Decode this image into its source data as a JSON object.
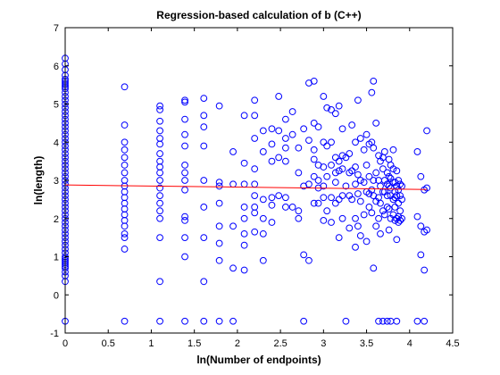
{
  "chart_data": {
    "type": "scatter",
    "title": "Regression-based calculation of b (C++)",
    "xlabel": "ln(Number of endpoints)",
    "ylabel": "ln(length)",
    "xlim": [
      0,
      4.5
    ],
    "ylim": [
      -1,
      7
    ],
    "xticks": [
      "0",
      "0.5",
      "1",
      "1.5",
      "2",
      "2.5",
      "3",
      "3.5",
      "4",
      "4.5"
    ],
    "yticks": [
      "-1",
      "0",
      "1",
      "2",
      "3",
      "4",
      "5",
      "6",
      "7"
    ],
    "grid": false,
    "colors": {
      "points": "#0000ff",
      "fit": "#ff0000",
      "axes": "#000000",
      "background": "#ffffff"
    },
    "series": [
      {
        "type": "scatter",
        "marker": "circle-open",
        "x": [
          0,
          0,
          0,
          0,
          0,
          0,
          0,
          0,
          0,
          0,
          0,
          0,
          0,
          0,
          0,
          0,
          0,
          0,
          0,
          0,
          0,
          0,
          0,
          0,
          0,
          0,
          0,
          0,
          0,
          0,
          0,
          0,
          0,
          0,
          0,
          0,
          0,
          0,
          0,
          0,
          0,
          0,
          0,
          0,
          0,
          0,
          0,
          0,
          0,
          0,
          0,
          0,
          0,
          0,
          0,
          0,
          0,
          0,
          0,
          0,
          0,
          0,
          0,
          0,
          0.69,
          0.69,
          0.69,
          0.69,
          0.69,
          0.69,
          0.69,
          0.69,
          0.69,
          0.69,
          0.69,
          0.69,
          0.69,
          0.69,
          0.69,
          0.69,
          0.69,
          0.69,
          0.69,
          0.69,
          1.1,
          1.1,
          1.1,
          1.1,
          1.1,
          1.1,
          1.1,
          1.1,
          1.1,
          1.1,
          1.1,
          1.1,
          1.1,
          1.1,
          1.1,
          1.1,
          1.1,
          1.1,
          1.1,
          1.39,
          1.39,
          1.39,
          1.39,
          1.39,
          1.39,
          1.39,
          1.39,
          1.39,
          1.39,
          1.39,
          1.39,
          1.39,
          1.39,
          1.61,
          1.61,
          1.61,
          1.61,
          1.61,
          1.61,
          1.61,
          1.61,
          1.61,
          1.79,
          1.79,
          1.79,
          1.79,
          1.79,
          1.79,
          1.79,
          1.79,
          1.95,
          1.95,
          1.95,
          1.95,
          1.95,
          2.08,
          2.08,
          2.08,
          2.08,
          2.08,
          2.08,
          2.08,
          2.08,
          2.2,
          2.2,
          2.2,
          2.2,
          2.2,
          2.2,
          2.2,
          2.2,
          2.2,
          2.3,
          2.3,
          2.3,
          2.3,
          2.3,
          2.3,
          2.4,
          2.4,
          2.4,
          2.4,
          2.4,
          2.4,
          2.48,
          2.48,
          2.48,
          2.48,
          2.56,
          2.56,
          2.56,
          2.56,
          2.56,
          2.56,
          2.64,
          2.64,
          2.64,
          2.71,
          2.71,
          2.71,
          2.71,
          2.77,
          2.77,
          2.77,
          2.77,
          2.83,
          2.83,
          2.83,
          2.83,
          2.89,
          2.89,
          2.89,
          2.89,
          2.89,
          2.89,
          2.94,
          2.94,
          2.94,
          2.94,
          2.94,
          3.0,
          3.0,
          3.0,
          3.0,
          3.0,
          3.0,
          3.04,
          3.04,
          3.04,
          3.04,
          3.09,
          3.09,
          3.09,
          3.09,
          3.09,
          3.14,
          3.14,
          3.14,
          3.14,
          3.14,
          3.18,
          3.18,
          3.18,
          3.18,
          3.18,
          3.22,
          3.22,
          3.22,
          3.22,
          3.22,
          3.26,
          3.26,
          3.26,
          3.3,
          3.3,
          3.3,
          3.3,
          3.33,
          3.33,
          3.33,
          3.37,
          3.37,
          3.37,
          3.37,
          3.37,
          3.4,
          3.4,
          3.4,
          3.4,
          3.43,
          3.43,
          3.43,
          3.43,
          3.47,
          3.47,
          3.47,
          3.5,
          3.5,
          3.5,
          3.5,
          3.53,
          3.53,
          3.53,
          3.53,
          3.56,
          3.56,
          3.56,
          3.56,
          3.58,
          3.58,
          3.58,
          3.58,
          3.58,
          3.61,
          3.61,
          3.61,
          3.61,
          3.64,
          3.64,
          3.64,
          3.64,
          3.64,
          3.66,
          3.66,
          3.66,
          3.66,
          3.69,
          3.69,
          3.69,
          3.69,
          3.69,
          3.71,
          3.71,
          3.71,
          3.71,
          3.74,
          3.74,
          3.74,
          3.74,
          3.74,
          3.76,
          3.76,
          3.76,
          3.76,
          3.76,
          3.78,
          3.78,
          3.78,
          3.78,
          3.78,
          3.78,
          3.81,
          3.81,
          3.81,
          3.81,
          3.81,
          3.83,
          3.83,
          3.83,
          3.83,
          3.83,
          3.85,
          3.85,
          3.85,
          3.85,
          3.85,
          3.85,
          3.87,
          3.87,
          3.87,
          3.87,
          3.87,
          3.89,
          3.89,
          3.89,
          3.89,
          3.91,
          3.91,
          3.91,
          4.09,
          4.09,
          4.09,
          4.13,
          4.13,
          4.13,
          4.17,
          4.17,
          4.17,
          4.17,
          4.2,
          4.2,
          4.2
        ],
        "y": [
          6.2,
          6.05,
          5.9,
          5.75,
          5.6,
          5.5,
          5.4,
          5.3,
          5.2,
          5.1,
          5.0,
          4.9,
          4.8,
          4.7,
          4.6,
          4.5,
          4.4,
          4.3,
          4.2,
          4.1,
          4.0,
          3.9,
          3.8,
          3.7,
          3.6,
          3.5,
          3.4,
          3.3,
          3.2,
          3.1,
          3.0,
          2.9,
          2.8,
          2.7,
          2.6,
          2.5,
          2.4,
          2.3,
          2.2,
          2.1,
          2.0,
          1.9,
          1.8,
          1.7,
          1.6,
          1.5,
          1.4,
          1.3,
          1.2,
          1.1,
          1.0,
          0.95,
          0.9,
          0.85,
          0.8,
          0.75,
          0.7,
          0.6,
          0.5,
          0.35,
          5.65,
          5.55,
          5.45,
          -0.69,
          5.45,
          4.45,
          4.0,
          3.8,
          3.6,
          3.4,
          3.2,
          3.0,
          2.85,
          2.7,
          2.55,
          2.4,
          2.25,
          2.1,
          1.95,
          1.8,
          1.6,
          1.5,
          1.2,
          -0.69,
          4.95,
          4.85,
          4.55,
          4.3,
          4.1,
          3.95,
          3.7,
          3.5,
          3.35,
          3.2,
          3.0,
          2.8,
          2.6,
          2.4,
          2.2,
          2.0,
          1.5,
          0.35,
          -0.69,
          5.1,
          5.05,
          4.6,
          4.2,
          3.9,
          3.4,
          3.2,
          3.0,
          2.75,
          2.05,
          1.95,
          1.5,
          1.0,
          -0.69,
          5.15,
          4.7,
          4.4,
          3.9,
          3.0,
          2.3,
          1.5,
          0.35,
          -0.69,
          4.95,
          2.95,
          2.85,
          2.4,
          1.8,
          1.35,
          0.9,
          -0.69,
          3.75,
          2.9,
          1.8,
          0.7,
          -0.69,
          4.7,
          3.45,
          2.9,
          2.3,
          2.0,
          1.6,
          1.3,
          0.65,
          5.1,
          4.7,
          4.1,
          3.3,
          2.9,
          2.6,
          2.3,
          2.15,
          1.65,
          4.3,
          3.75,
          2.5,
          2.0,
          1.6,
          0.9,
          4.35,
          3.95,
          3.5,
          2.55,
          2.35,
          1.9,
          5.2,
          4.3,
          3.6,
          2.6,
          4.6,
          4.1,
          3.85,
          3.5,
          2.55,
          2.3,
          4.8,
          4.2,
          2.3,
          3.85,
          3.2,
          2.2,
          2.0,
          4.35,
          2.85,
          1.05,
          -0.69,
          5.55,
          4.05,
          2.9,
          0.9,
          5.6,
          4.5,
          3.8,
          3.55,
          3.1,
          2.4,
          4.4,
          3.4,
          3.0,
          2.8,
          2.4,
          5.2,
          4.0,
          3.35,
          2.85,
          2.55,
          1.95,
          4.9,
          3.9,
          3.1,
          2.2,
          4.85,
          4.0,
          3.4,
          2.55,
          1.9,
          4.75,
          3.6,
          3.2,
          2.95,
          2.4,
          4.95,
          3.5,
          3.25,
          2.5,
          1.5,
          4.35,
          3.65,
          3.3,
          2.6,
          2.0,
          3.6,
          2.85,
          -0.69,
          3.7,
          3.2,
          2.6,
          1.75,
          4.45,
          3.25,
          2.5,
          4.0,
          3.35,
          2.9,
          2.0,
          1.25,
          5.1,
          3.15,
          2.65,
          1.8,
          4.1,
          3.0,
          2.45,
          1.55,
          3.8,
          2.95,
          2.1,
          4.2,
          3.4,
          2.7,
          1.4,
          3.95,
          3.1,
          2.65,
          2.3,
          5.3,
          4.0,
          2.75,
          2.15,
          5.6,
          3.85,
          3.0,
          2.6,
          0.7,
          4.5,
          3.2,
          2.45,
          1.8,
          3.65,
          3.0,
          2.55,
          2.0,
          -0.69,
          3.5,
          2.85,
          2.4,
          1.6,
          3.6,
          3.3,
          2.7,
          2.2,
          -0.69,
          3.75,
          3.0,
          2.7,
          2.1,
          3.2,
          2.9,
          2.6,
          2.3,
          -0.69,
          3.55,
          3.1,
          2.85,
          2.25,
          1.7,
          3.4,
          3.05,
          2.8,
          2.6,
          2.0,
          -0.69,
          3.8,
          3.3,
          2.95,
          2.5,
          2.1,
          2.95,
          2.7,
          2.55,
          2.3,
          1.95,
          3.25,
          2.85,
          2.6,
          2.0,
          1.45,
          -0.69,
          3.0,
          2.75,
          2.4,
          2.05,
          1.9,
          2.9,
          2.6,
          2.2,
          1.95,
          2.85,
          2.5,
          2.0,
          3.75,
          2.05,
          -0.69,
          3.1,
          1.8,
          1.05,
          2.75,
          1.65,
          0.65,
          -0.69,
          4.3,
          2.8,
          1.7
        ]
      },
      {
        "type": "line",
        "name": "fit",
        "x": [
          0,
          4.2
        ],
        "y": [
          2.88,
          2.76
        ]
      }
    ]
  }
}
